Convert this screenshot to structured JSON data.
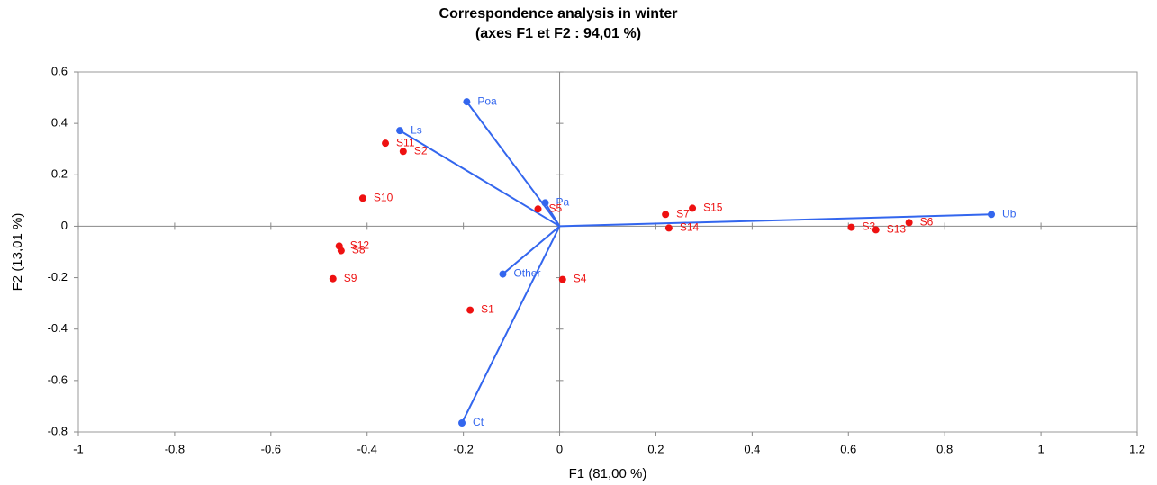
{
  "chart_data": {
    "type": "scatter",
    "title": "Correspondence analysis in winter",
    "subtitle": "(axes F1 et F2 : 94,01 %)",
    "x_label": "F1 (81,00 %)",
    "y_label": "F2 (13,01 %)",
    "xlim": [
      -1,
      1.2
    ],
    "ylim": [
      -0.8,
      0.6
    ],
    "xticks": [
      -1,
      -0.8,
      -0.6,
      -0.4,
      -0.2,
      0,
      0.2,
      0.4,
      0.6,
      0.8,
      1,
      1.2
    ],
    "yticks": [
      -0.8,
      -0.6,
      -0.4,
      -0.2,
      0,
      0.2,
      0.4,
      0.6
    ],
    "grid": false,
    "variables": {
      "color": "#3366ee",
      "arrows": true,
      "labels": [
        "Poa",
        "Ls",
        "Pa",
        "Other",
        "Ct",
        "Ub"
      ],
      "x": [
        -0.193,
        -0.332,
        -0.03,
        -0.118,
        -0.203,
        0.897
      ],
      "y": [
        0.484,
        0.372,
        0.091,
        -0.186,
        -0.765,
        0.046
      ]
    },
    "observations": {
      "color": "#ee1111",
      "arrows": false,
      "labels": [
        "S11",
        "S2",
        "S10",
        "S5",
        "S12",
        "S8",
        "S9",
        "S1",
        "S4",
        "S7",
        "S15",
        "S14",
        "S3",
        "S13",
        "S6"
      ],
      "x": [
        -0.362,
        -0.325,
        -0.409,
        -0.045,
        -0.458,
        -0.454,
        -0.471,
        -0.186,
        0.006,
        0.22,
        0.276,
        0.227,
        0.606,
        0.657,
        0.726
      ],
      "y": [
        0.323,
        0.291,
        0.109,
        0.067,
        -0.077,
        -0.095,
        -0.204,
        -0.326,
        -0.207,
        0.046,
        0.07,
        -0.007,
        -0.004,
        -0.014,
        0.014
      ]
    }
  }
}
